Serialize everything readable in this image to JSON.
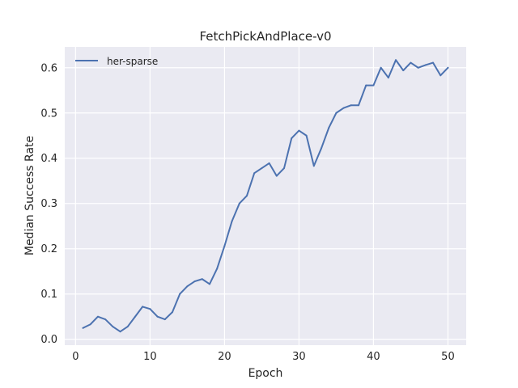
{
  "chart_data": {
    "type": "line",
    "title": "FetchPickAndPlace-v0",
    "xlabel": "Epoch",
    "ylabel": "Median Success Rate",
    "xlim": [
      -1.45,
      52.45
    ],
    "ylim": [
      -0.013,
      0.646
    ],
    "xticks": [
      0,
      10,
      20,
      30,
      40,
      50
    ],
    "yticks": [
      0.0,
      0.1,
      0.2,
      0.3,
      0.4,
      0.5,
      0.6
    ],
    "grid": true,
    "legend_position": "top-left",
    "series": [
      {
        "name": "her-sparse",
        "color": "#4c72b0",
        "x": [
          1,
          2,
          3,
          4,
          5,
          6,
          7,
          8,
          9,
          10,
          11,
          12,
          13,
          14,
          15,
          16,
          17,
          18,
          19,
          20,
          21,
          22,
          23,
          24,
          25,
          26,
          27,
          28,
          29,
          30,
          31,
          32,
          33,
          34,
          35,
          36,
          37,
          38,
          39,
          40,
          41,
          42,
          43,
          44,
          45,
          46,
          47,
          48,
          49,
          50
        ],
        "y": [
          0.025,
          0.033,
          0.05,
          0.044,
          0.028,
          0.017,
          0.028,
          0.05,
          0.072,
          0.067,
          0.05,
          0.044,
          0.06,
          0.1,
          0.117,
          0.128,
          0.133,
          0.122,
          0.156,
          0.206,
          0.261,
          0.3,
          0.317,
          0.367,
          0.378,
          0.389,
          0.361,
          0.378,
          0.444,
          0.461,
          0.45,
          0.383,
          0.422,
          0.467,
          0.5,
          0.511,
          0.517,
          0.517,
          0.561,
          0.561,
          0.6,
          0.578,
          0.617,
          0.594,
          0.611,
          0.6,
          0.606,
          0.611,
          0.583,
          0.6
        ]
      }
    ]
  }
}
